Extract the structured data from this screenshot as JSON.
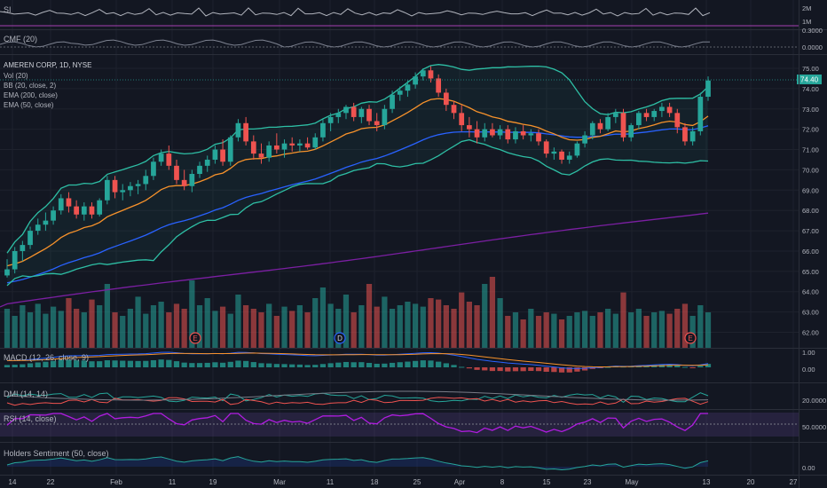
{
  "panes": {
    "si": {
      "label": "SI",
      "axis_labels": [
        "2M",
        "1M"
      ]
    },
    "cmf": {
      "label": "CMF (20)",
      "axis_labels": [
        "0.3000",
        "0.0000"
      ]
    },
    "main": {
      "title": "AMEREN CORP, 1D, NYSE",
      "indicators": [
        "Vol (20)",
        "BB (20, close, 2)",
        "EMA (200, close)",
        "EMA (50, close)"
      ],
      "axis_labels": [
        "75.00",
        "74.00",
        "73.00",
        "72.00",
        "71.00",
        "70.00",
        "69.00",
        "68.00",
        "67.00",
        "66.00",
        "65.00",
        "64.00",
        "63.00",
        "62.00"
      ],
      "last_price": "74.40",
      "event_markers": [
        {
          "label": "E",
          "kind": "earnings"
        },
        {
          "label": "D",
          "kind": "dividend"
        },
        {
          "label": "E",
          "kind": "earnings"
        }
      ]
    },
    "macd": {
      "label": "MACD (12, 26, close, 9)",
      "axis_labels": [
        "1.00",
        "0.00"
      ]
    },
    "dmi": {
      "label": "DMI (14, 14)",
      "axis_labels": [
        "20.0000"
      ]
    },
    "rsi": {
      "label": "RSI (14, close)",
      "axis_labels": [
        "50.0000"
      ]
    },
    "holders": {
      "label": "Holders Sentiment (50, close)",
      "axis_labels": [
        "0.00"
      ]
    }
  },
  "time_axis": [
    "14",
    "22",
    "Feb",
    "11",
    "19",
    "Mar",
    "11",
    "18",
    "25",
    "Apr",
    "8",
    "15",
    "23",
    "May",
    "13",
    "20",
    "27"
  ],
  "colors": {
    "background": "#131722",
    "grid": "#1e222d",
    "up": "#26a69a",
    "down": "#ef5350",
    "bb": "#2ebfa5",
    "ema50": "#f7922b",
    "ema200": "#2962ff",
    "long_ma": "#7b1fa2",
    "rsi": "#b01ce0",
    "text": "#b2b5be"
  },
  "chart_data": {
    "type": "candlestick",
    "title": "AMEREN CORP, 1D, NYSE",
    "ylim": [
      61.5,
      75.5
    ],
    "candles": [
      [
        64.8,
        65.6,
        64.7,
        65.1
      ],
      [
        65.1,
        66.2,
        64.9,
        66.0
      ],
      [
        66.0,
        66.5,
        65.5,
        66.3
      ],
      [
        66.3,
        67.2,
        66.1,
        67.0
      ],
      [
        67.0,
        67.6,
        66.8,
        67.3
      ],
      [
        67.3,
        67.9,
        67.0,
        67.5
      ],
      [
        67.5,
        68.2,
        67.3,
        68.0
      ],
      [
        68.0,
        68.8,
        67.8,
        68.6
      ],
      [
        68.6,
        68.9,
        67.9,
        68.2
      ],
      [
        68.2,
        68.5,
        67.6,
        67.8
      ],
      [
        67.8,
        68.4,
        67.5,
        68.2
      ],
      [
        68.2,
        68.4,
        67.6,
        67.8
      ],
      [
        67.8,
        68.6,
        67.7,
        68.5
      ],
      [
        68.5,
        69.7,
        68.3,
        69.5
      ],
      [
        69.5,
        69.7,
        68.6,
        68.9
      ],
      [
        68.9,
        69.3,
        68.5,
        69.0
      ],
      [
        69.0,
        69.4,
        68.7,
        69.2
      ],
      [
        69.2,
        69.5,
        68.8,
        69.3
      ],
      [
        69.3,
        70.0,
        69.0,
        69.7
      ],
      [
        69.7,
        70.6,
        69.5,
        70.4
      ],
      [
        70.4,
        71.0,
        70.2,
        70.8
      ],
      [
        70.8,
        71.2,
        70.0,
        70.2
      ],
      [
        70.2,
        70.5,
        69.3,
        69.5
      ],
      [
        69.5,
        70.0,
        69.0,
        69.2
      ],
      [
        69.2,
        70.0,
        68.9,
        69.8
      ],
      [
        69.8,
        70.4,
        69.6,
        70.2
      ],
      [
        70.2,
        70.7,
        69.9,
        70.5
      ],
      [
        70.5,
        71.2,
        70.3,
        71.0
      ],
      [
        71.0,
        71.5,
        70.2,
        70.4
      ],
      [
        70.4,
        71.7,
        70.2,
        71.6
      ],
      [
        71.6,
        72.5,
        71.4,
        72.3
      ],
      [
        72.3,
        72.6,
        71.2,
        71.4
      ],
      [
        71.4,
        71.7,
        70.5,
        70.8
      ],
      [
        70.8,
        71.3,
        70.3,
        70.6
      ],
      [
        70.6,
        71.4,
        70.4,
        71.2
      ],
      [
        71.2,
        71.8,
        70.8,
        71.0
      ],
      [
        71.0,
        71.5,
        70.6,
        71.3
      ],
      [
        71.3,
        71.6,
        70.9,
        71.2
      ],
      [
        71.2,
        71.5,
        70.9,
        71.3
      ],
      [
        71.3,
        71.6,
        71.0,
        71.1
      ],
      [
        71.1,
        71.8,
        71.0,
        71.6
      ],
      [
        71.6,
        72.5,
        71.4,
        72.3
      ],
      [
        72.3,
        72.8,
        71.9,
        72.6
      ],
      [
        72.6,
        73.0,
        72.3,
        72.8
      ],
      [
        72.8,
        73.2,
        72.5,
        73.1
      ],
      [
        73.1,
        73.3,
        72.4,
        72.6
      ],
      [
        72.6,
        73.1,
        72.3,
        73.0
      ],
      [
        73.0,
        73.2,
        72.2,
        72.4
      ],
      [
        72.4,
        72.8,
        71.9,
        72.2
      ],
      [
        72.2,
        73.2,
        72.0,
        73.0
      ],
      [
        73.0,
        73.9,
        72.8,
        73.7
      ],
      [
        73.7,
        74.1,
        73.4,
        73.9
      ],
      [
        73.9,
        74.4,
        73.6,
        74.2
      ],
      [
        74.2,
        74.8,
        74.0,
        74.6
      ],
      [
        74.6,
        75.0,
        74.4,
        74.9
      ],
      [
        74.9,
        75.1,
        74.3,
        74.5
      ],
      [
        74.5,
        74.7,
        73.6,
        73.8
      ],
      [
        73.8,
        74.0,
        72.9,
        73.2
      ],
      [
        73.2,
        73.4,
        72.5,
        72.8
      ],
      [
        72.8,
        73.2,
        71.9,
        72.2
      ],
      [
        72.2,
        72.6,
        71.6,
        72.0
      ],
      [
        72.0,
        72.4,
        71.3,
        71.6
      ],
      [
        71.6,
        72.3,
        71.4,
        72.0
      ],
      [
        72.0,
        72.3,
        71.6,
        71.7
      ],
      [
        71.7,
        72.2,
        71.5,
        72.0
      ],
      [
        72.0,
        72.2,
        71.3,
        71.5
      ],
      [
        71.5,
        72.1,
        71.3,
        71.9
      ],
      [
        71.9,
        72.2,
        71.5,
        71.7
      ],
      [
        71.7,
        72.0,
        71.4,
        71.8
      ],
      [
        71.8,
        72.0,
        71.2,
        71.4
      ],
      [
        71.4,
        71.5,
        70.6,
        70.8
      ],
      [
        70.8,
        71.1,
        70.5,
        70.9
      ],
      [
        70.9,
        71.0,
        70.3,
        70.5
      ],
      [
        70.5,
        70.9,
        70.3,
        70.7
      ],
      [
        70.7,
        71.4,
        70.6,
        71.3
      ],
      [
        71.3,
        71.9,
        71.1,
        71.7
      ],
      [
        71.7,
        72.4,
        71.5,
        72.3
      ],
      [
        72.3,
        72.5,
        71.8,
        72.0
      ],
      [
        72.0,
        72.8,
        71.9,
        72.6
      ],
      [
        72.6,
        73.0,
        72.3,
        72.8
      ],
      [
        72.8,
        73.0,
        71.4,
        71.6
      ],
      [
        71.6,
        72.3,
        71.4,
        72.2
      ],
      [
        72.2,
        72.9,
        72.0,
        72.8
      ],
      [
        72.8,
        73.0,
        72.4,
        72.6
      ],
      [
        72.6,
        73.0,
        72.4,
        72.9
      ],
      [
        72.9,
        73.3,
        72.6,
        73.1
      ],
      [
        73.1,
        73.3,
        72.6,
        72.8
      ],
      [
        72.8,
        73.0,
        71.8,
        72.1
      ],
      [
        72.1,
        72.3,
        71.2,
        71.4
      ],
      [
        71.4,
        72.1,
        71.2,
        71.9
      ],
      [
        71.9,
        73.8,
        71.7,
        73.6
      ],
      [
        73.6,
        74.6,
        73.4,
        74.4
      ]
    ],
    "volume": [
      0.55,
      0.45,
      0.6,
      0.5,
      0.62,
      0.48,
      0.58,
      0.52,
      0.7,
      0.55,
      0.5,
      0.68,
      0.6,
      0.9,
      0.5,
      0.45,
      0.55,
      0.72,
      0.48,
      0.6,
      0.65,
      0.5,
      0.62,
      0.55,
      0.95,
      0.6,
      0.7,
      0.52,
      0.58,
      0.48,
      0.75,
      0.6,
      0.55,
      0.5,
      0.62,
      0.45,
      0.58,
      0.52,
      0.6,
      0.5,
      0.7,
      0.85,
      0.62,
      0.55,
      0.75,
      0.5,
      0.6,
      0.9,
      0.58,
      0.72,
      0.55,
      0.6,
      0.65,
      0.62,
      0.58,
      0.7,
      0.68,
      0.6,
      0.55,
      0.78,
      0.65,
      0.6,
      0.9,
      1.0,
      0.7,
      0.45,
      0.5,
      0.4,
      0.55,
      0.45,
      0.5,
      0.48,
      0.4,
      0.45,
      0.5,
      0.52,
      0.45,
      0.5,
      0.55,
      0.48,
      0.78,
      0.5,
      0.55,
      0.45,
      0.5,
      0.52,
      0.48,
      0.55,
      0.62,
      0.45,
      0.6,
      0.5
    ]
  }
}
